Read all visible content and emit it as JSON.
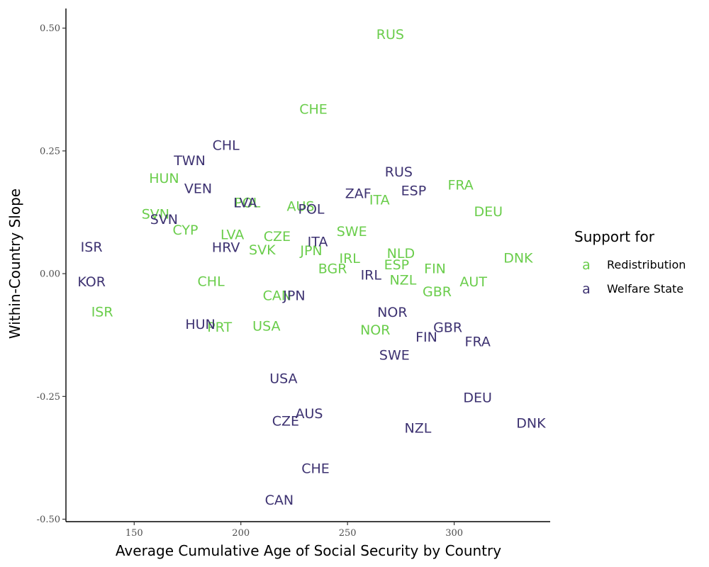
{
  "chart_data": {
    "type": "scatter",
    "xlabel": "Average Cumulative Age of Social Security by Country",
    "ylabel": "Within-Country Slope",
    "xlim": [
      118,
      345
    ],
    "ylim": [
      -0.505,
      0.54
    ],
    "x_ticks": [
      150,
      200,
      250,
      300
    ],
    "y_ticks": [
      {
        "value": 0.5,
        "label": "0.50"
      },
      {
        "value": 0.25,
        "label": "0.25"
      },
      {
        "value": 0.0,
        "label": "0.00"
      },
      {
        "value": -0.25,
        "label": "-0.25"
      },
      {
        "value": -0.5,
        "label": "-0.50"
      }
    ],
    "grid": false,
    "legend": {
      "title": "Support for",
      "position": "right",
      "key_glyph": "a"
    },
    "series": [
      {
        "name": "Redistribution",
        "color": "#6ACD4B",
        "points": [
          {
            "label": "RUS",
            "x": 270,
            "y": 0.488
          },
          {
            "label": "CHE",
            "x": 234,
            "y": 0.336
          },
          {
            "label": "HUN",
            "x": 164,
            "y": 0.195
          },
          {
            "label": "FRA",
            "x": 303,
            "y": 0.181
          },
          {
            "label": "POL",
            "x": 203,
            "y": 0.145
          },
          {
            "label": "AUS",
            "x": 228,
            "y": 0.138
          },
          {
            "label": "ITA",
            "x": 265,
            "y": 0.151
          },
          {
            "label": "DEU",
            "x": 316,
            "y": 0.127
          },
          {
            "label": "SVN",
            "x": 160,
            "y": 0.122
          },
          {
            "label": "CYP",
            "x": 174,
            "y": 0.09
          },
          {
            "label": "LVA",
            "x": 196,
            "y": 0.08
          },
          {
            "label": "CZE",
            "x": 217,
            "y": 0.077
          },
          {
            "label": "SWE",
            "x": 252,
            "y": 0.087
          },
          {
            "label": "SVK",
            "x": 210,
            "y": 0.049
          },
          {
            "label": "JPN",
            "x": 233,
            "y": 0.048
          },
          {
            "label": "IRL",
            "x": 251,
            "y": 0.032
          },
          {
            "label": "NLD",
            "x": 275,
            "y": 0.042
          },
          {
            "label": "DNK",
            "x": 330,
            "y": 0.033
          },
          {
            "label": "ESP",
            "x": 273,
            "y": 0.019
          },
          {
            "label": "BGR",
            "x": 243,
            "y": 0.011
          },
          {
            "label": "FIN",
            "x": 291,
            "y": 0.011
          },
          {
            "label": "NZL",
            "x": 276,
            "y": -0.012
          },
          {
            "label": "AUT",
            "x": 309,
            "y": -0.016
          },
          {
            "label": "CHL",
            "x": 186,
            "y": -0.015
          },
          {
            "label": "GBR",
            "x": 292,
            "y": -0.036
          },
          {
            "label": "CAN",
            "x": 217,
            "y": -0.044
          },
          {
            "label": "ISR",
            "x": 135,
            "y": -0.077
          },
          {
            "label": "PRT",
            "x": 190,
            "y": -0.108
          },
          {
            "label": "USA",
            "x": 212,
            "y": -0.106
          },
          {
            "label": "NOR",
            "x": 263,
            "y": -0.114
          }
        ]
      },
      {
        "name": "Welfare State",
        "color": "#3D3271",
        "points": [
          {
            "label": "CHL",
            "x": 193,
            "y": 0.262
          },
          {
            "label": "TWN",
            "x": 176,
            "y": 0.231
          },
          {
            "label": "RUS",
            "x": 274,
            "y": 0.208
          },
          {
            "label": "VEN",
            "x": 180,
            "y": 0.174
          },
          {
            "label": "ZAF",
            "x": 255,
            "y": 0.164
          },
          {
            "label": "ESP",
            "x": 281,
            "y": 0.17
          },
          {
            "label": "LVA",
            "x": 202,
            "y": 0.145
          },
          {
            "label": "POL",
            "x": 233,
            "y": 0.132
          },
          {
            "label": "SVN",
            "x": 164,
            "y": 0.111
          },
          {
            "label": "ITA",
            "x": 236,
            "y": 0.066
          },
          {
            "label": "HRV",
            "x": 193,
            "y": 0.054
          },
          {
            "label": "ISR",
            "x": 130,
            "y": 0.055
          },
          {
            "label": "IRL",
            "x": 261,
            "y": -0.002
          },
          {
            "label": "KOR",
            "x": 130,
            "y": -0.016
          },
          {
            "label": "JPN",
            "x": 225,
            "y": -0.044
          },
          {
            "label": "NOR",
            "x": 271,
            "y": -0.078
          },
          {
            "label": "HUN",
            "x": 181,
            "y": -0.102
          },
          {
            "label": "GBR",
            "x": 297,
            "y": -0.109
          },
          {
            "label": "FIN",
            "x": 287,
            "y": -0.128
          },
          {
            "label": "FRA",
            "x": 311,
            "y": -0.138
          },
          {
            "label": "SWE",
            "x": 272,
            "y": -0.165
          },
          {
            "label": "USA",
            "x": 220,
            "y": -0.213
          },
          {
            "label": "DEU",
            "x": 311,
            "y": -0.252
          },
          {
            "label": "AUS",
            "x": 232,
            "y": -0.284
          },
          {
            "label": "CZE",
            "x": 221,
            "y": -0.299
          },
          {
            "label": "DNK",
            "x": 336,
            "y": -0.304
          },
          {
            "label": "NZL",
            "x": 283,
            "y": -0.314
          },
          {
            "label": "CHE",
            "x": 235,
            "y": -0.396
          },
          {
            "label": "CAN",
            "x": 218,
            "y": -0.46
          }
        ]
      }
    ]
  }
}
